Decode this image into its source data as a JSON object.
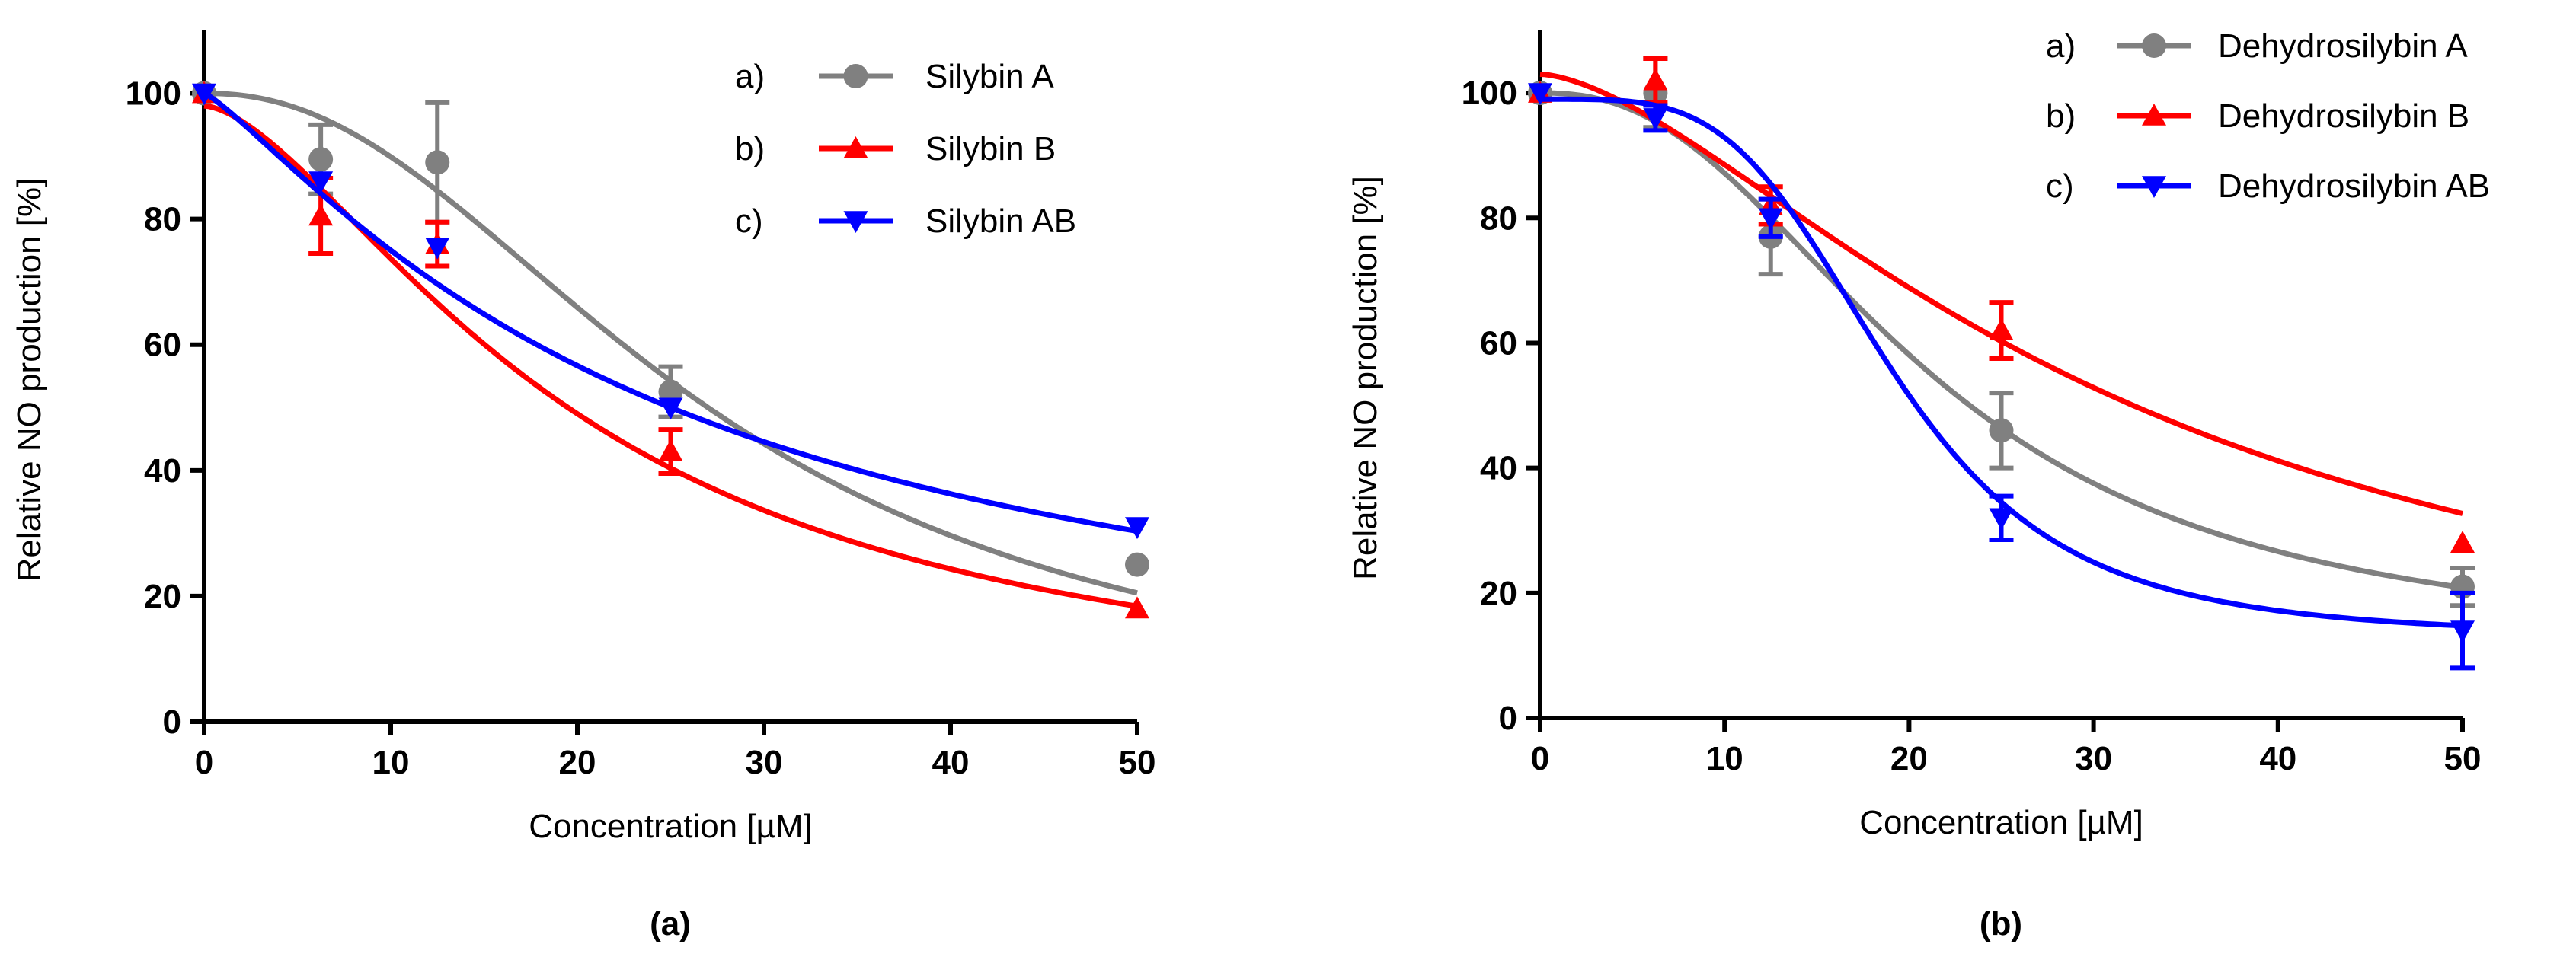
{
  "chart_data": [
    {
      "type": "scatter",
      "panel_label": "(a)",
      "xlabel": "Concentration [µM]",
      "ylabel": "Relative NO production [%]",
      "xlim": [
        0,
        50
      ],
      "ylim": [
        0,
        110
      ],
      "xticks": [
        0,
        10,
        20,
        30,
        40,
        50
      ],
      "yticks": [
        0,
        20,
        40,
        60,
        80,
        100
      ],
      "legend_position": "top-right",
      "series": [
        {
          "legend_prefix": "a)",
          "name": "Silybin A",
          "color": "#808080",
          "marker": "circle",
          "x": [
            0,
            6.25,
            12.5,
            25,
            50
          ],
          "y": [
            100,
            89.5,
            89,
            52.5,
            25
          ],
          "err": [
            0,
            5.5,
            9.5,
            4,
            0
          ],
          "curve": {
            "top": 100,
            "bottom": 0,
            "ic50": 27,
            "hill": 2.2
          }
        },
        {
          "legend_prefix": "b)",
          "name": "Silybin B",
          "color": "#ff0000",
          "marker": "triangle-up",
          "x": [
            0,
            6.25,
            12.5,
            25,
            50
          ],
          "y": [
            100,
            80.5,
            76,
            43,
            18
          ],
          "err": [
            0,
            6,
            3.5,
            3.5,
            0
          ],
          "curve": {
            "top": 98,
            "bottom": 0,
            "ic50": 20,
            "hill": 1.6
          }
        },
        {
          "legend_prefix": "c)",
          "name": "Silybin AB",
          "color": "#0000ff",
          "marker": "triangle-down",
          "x": [
            0,
            6.25,
            12.5,
            25,
            50
          ],
          "y": [
            100,
            86,
            75.5,
            50,
            31
          ],
          "err": [
            0,
            0,
            0,
            0,
            0
          ],
          "curve": {
            "top": 100,
            "bottom": 0,
            "ic50": 25,
            "hill": 1.2
          }
        }
      ]
    },
    {
      "type": "scatter",
      "panel_label": "(b)",
      "xlabel": "Concentration [µM]",
      "ylabel": "Relative NO production [%]",
      "xlim": [
        0,
        50
      ],
      "ylim": [
        0,
        110
      ],
      "xticks": [
        0,
        10,
        20,
        30,
        40,
        50
      ],
      "yticks": [
        0,
        20,
        40,
        60,
        80,
        100
      ],
      "legend_position": "top-right",
      "series": [
        {
          "legend_prefix": "a)",
          "name": "Dehydrosilybin A",
          "color": "#808080",
          "marker": "circle",
          "x": [
            0,
            6.25,
            12.5,
            25,
            50
          ],
          "y": [
            100,
            100,
            77,
            46,
            21
          ],
          "err": [
            0,
            5.5,
            6,
            6,
            3
          ],
          "curve": {
            "top": 100,
            "bottom": 11,
            "ic50": 21,
            "hill": 2.4
          }
        },
        {
          "legend_prefix": "b)",
          "name": "Dehydrosilybin B",
          "color": "#ff0000",
          "marker": "triangle-up",
          "x": [
            0,
            6.25,
            12.5,
            25,
            50
          ],
          "y": [
            100,
            102,
            82,
            62,
            28
          ],
          "err": [
            0,
            3.5,
            3,
            4.5,
            0
          ],
          "curve": {
            "top": 103,
            "bottom": 0,
            "ic50": 31,
            "hill": 1.6
          }
        },
        {
          "legend_prefix": "c)",
          "name": "Dehydrosilybin AB",
          "color": "#0000ff",
          "marker": "triangle-down",
          "x": [
            0,
            6.25,
            12.5,
            25,
            50
          ],
          "y": [
            100,
            96,
            80,
            32,
            14
          ],
          "err": [
            0,
            2,
            3,
            3.5,
            6
          ],
          "curve": {
            "top": 99,
            "bottom": 13,
            "ic50": 19,
            "hill": 4.0
          }
        }
      ]
    }
  ]
}
